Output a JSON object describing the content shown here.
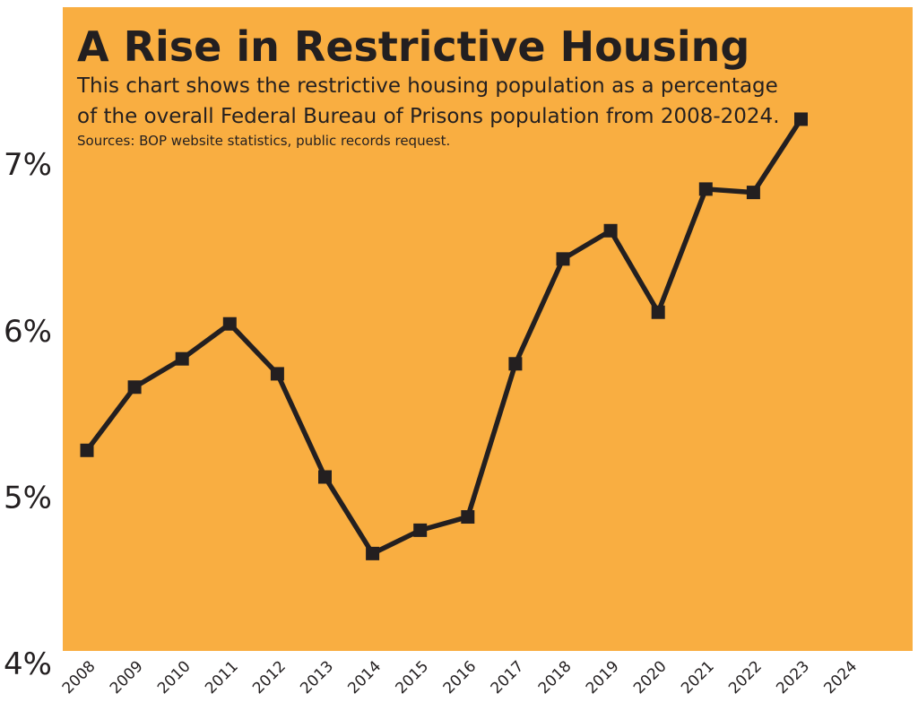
{
  "chart_data": {
    "type": "line",
    "title": "A Rise in Restrictive Housing",
    "subtitle_lines": [
      "This chart shows the restrictive housing population as a percentage",
      "of the overall Federal Bureau of Prisons population from 2008-2024."
    ],
    "source": "Sources: BOP website statistics, public records request.",
    "xlabel": "",
    "ylabel": "",
    "x": [
      "2008",
      "2009",
      "2010",
      "2011",
      "2012",
      "2013",
      "2014",
      "2015",
      "2016",
      "2017",
      "2018",
      "2019",
      "2020",
      "2021",
      "2022",
      "2023",
      "2024"
    ],
    "y_tick_labels": [
      "4%",
      "5%",
      "6%",
      "7%"
    ],
    "series": [
      {
        "name": "Restrictive housing population (% of BOP population)",
        "values": [
          5.27,
          5.65,
          5.82,
          6.03,
          5.73,
          5.11,
          4.65,
          4.79,
          4.87,
          5.79,
          6.42,
          6.59,
          6.1,
          6.84,
          6.82,
          7.26,
          null
        ]
      }
    ],
    "ylim": [
      4,
      7.6
    ],
    "grid": true
  },
  "colors": {
    "band": "#f9ae41",
    "gridline": "#ffffff",
    "line": "#231f20",
    "text": "#231f20"
  }
}
